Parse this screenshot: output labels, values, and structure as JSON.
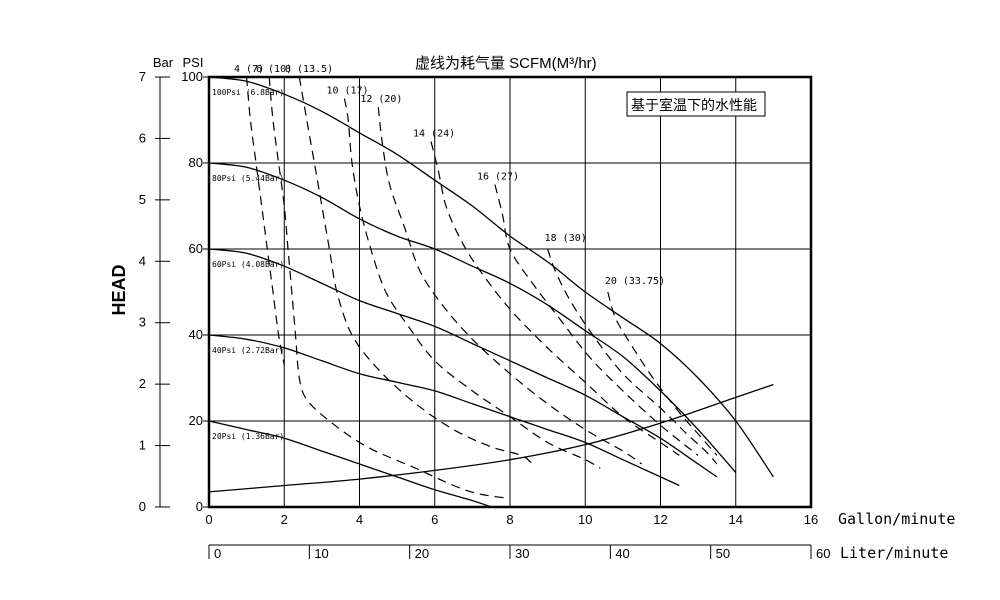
{
  "chart_data": {
    "type": "line",
    "title": "虚线为耗气量  SCFM(M³/hr)",
    "note": "基于室温下的水性能",
    "ylabel": "HEAD",
    "xlabel": "Gallon/minute",
    "x2label": "Liter/minute",
    "ylabel_bar": "Bar",
    "ylabel_psi": "PSI",
    "xlim": [
      0,
      16
    ],
    "ylim_psi": [
      0,
      100
    ],
    "ylim_bar": [
      0,
      7
    ],
    "x_ticks": [
      "0",
      "2",
      "4",
      "6",
      "8",
      "10",
      "12",
      "14",
      "16"
    ],
    "x2_ticks": [
      "0",
      "10",
      "20",
      "30",
      "40",
      "50",
      "60"
    ],
    "psi_ticks": [
      "0",
      "20",
      "40",
      "60",
      "80",
      "100"
    ],
    "bar_ticks": [
      "0",
      "1",
      "2",
      "3",
      "4",
      "5",
      "6",
      "7"
    ],
    "grid": true,
    "head_curves": [
      {
        "label": "100Psi (6.8Bar)",
        "points": [
          [
            0,
            100
          ],
          [
            1,
            99
          ],
          [
            2,
            96
          ],
          [
            3,
            92
          ],
          [
            4,
            87
          ],
          [
            5,
            82
          ],
          [
            6,
            76
          ],
          [
            7,
            70
          ],
          [
            8,
            63
          ],
          [
            9,
            57
          ],
          [
            10,
            50
          ],
          [
            11,
            44
          ],
          [
            12,
            38
          ],
          [
            13,
            30
          ],
          [
            14,
            20
          ],
          [
            15,
            7
          ]
        ]
      },
      {
        "label": "80Psi (5.44Bar)",
        "points": [
          [
            0,
            80
          ],
          [
            1,
            79
          ],
          [
            2,
            76
          ],
          [
            3,
            72
          ],
          [
            4,
            67
          ],
          [
            5,
            63
          ],
          [
            6,
            60
          ],
          [
            7,
            56
          ],
          [
            8,
            52
          ],
          [
            9,
            47
          ],
          [
            10,
            41
          ],
          [
            11,
            35
          ],
          [
            12,
            27
          ],
          [
            13,
            18
          ],
          [
            14,
            8
          ]
        ]
      },
      {
        "label": "60Psi (4.08Bar)",
        "points": [
          [
            0,
            60
          ],
          [
            1,
            59
          ],
          [
            2,
            56
          ],
          [
            3,
            52
          ],
          [
            4,
            48
          ],
          [
            5,
            45
          ],
          [
            6,
            42
          ],
          [
            7,
            38
          ],
          [
            8,
            34
          ],
          [
            9,
            30
          ],
          [
            10,
            26
          ],
          [
            11,
            21
          ],
          [
            12,
            16
          ],
          [
            13,
            10
          ],
          [
            13.5,
            7
          ]
        ]
      },
      {
        "label": "40Psi (2.72Bar)",
        "points": [
          [
            0,
            40
          ],
          [
            1,
            39
          ],
          [
            2,
            37
          ],
          [
            3,
            34
          ],
          [
            4,
            31
          ],
          [
            5,
            29
          ],
          [
            6,
            27
          ],
          [
            7,
            24
          ],
          [
            8,
            21
          ],
          [
            9,
            18
          ],
          [
            10,
            15
          ],
          [
            11,
            11
          ],
          [
            12,
            7
          ],
          [
            12.5,
            5
          ]
        ]
      },
      {
        "label": "20Psi (1.36Bar)",
        "points": [
          [
            0,
            20
          ],
          [
            1,
            18
          ],
          [
            2,
            16
          ],
          [
            3,
            13
          ],
          [
            4,
            10
          ],
          [
            5,
            7
          ],
          [
            6,
            4
          ],
          [
            7,
            1.5
          ],
          [
            7.5,
            0
          ]
        ]
      }
    ],
    "air_curves": [
      {
        "label": "4 (7)",
        "points": [
          [
            1.0,
            100
          ],
          [
            1.1,
            90
          ],
          [
            1.25,
            80
          ],
          [
            1.4,
            70
          ],
          [
            1.55,
            60
          ],
          [
            1.7,
            50
          ],
          [
            1.85,
            40
          ],
          [
            2.0,
            33
          ]
        ]
      },
      {
        "label": "6 (10)",
        "points": [
          [
            1.6,
            100
          ],
          [
            1.7,
            90
          ],
          [
            1.85,
            80
          ],
          [
            2.0,
            70
          ],
          [
            2.1,
            60
          ],
          [
            2.2,
            50
          ],
          [
            2.3,
            40
          ],
          [
            2.4,
            30
          ],
          [
            2.6,
            25
          ],
          [
            3.2,
            20
          ],
          [
            4.2,
            14
          ],
          [
            5.5,
            9
          ],
          [
            6.5,
            5
          ],
          [
            7.2,
            3
          ],
          [
            8.0,
            2
          ]
        ]
      },
      {
        "label": "8 (13.5)",
        "points": [
          [
            2.4,
            100
          ],
          [
            2.6,
            90
          ],
          [
            2.8,
            80
          ],
          [
            3.0,
            70
          ],
          [
            3.2,
            60
          ],
          [
            3.4,
            50
          ],
          [
            3.8,
            40
          ],
          [
            4.5,
            32
          ],
          [
            5.5,
            24
          ],
          [
            6.5,
            18
          ],
          [
            7.5,
            14
          ],
          [
            8.3,
            12
          ],
          [
            8.6,
            10
          ]
        ]
      },
      {
        "label": "10 (17)",
        "points": [
          [
            3.6,
            95
          ],
          [
            3.7,
            90
          ],
          [
            3.8,
            80
          ],
          [
            4.0,
            70
          ],
          [
            4.3,
            60
          ],
          [
            4.7,
            50
          ],
          [
            5.3,
            42
          ],
          [
            6.0,
            34
          ],
          [
            7.0,
            27
          ],
          [
            8.0,
            21
          ],
          [
            9.0,
            15
          ],
          [
            10.0,
            11
          ],
          [
            10.4,
            9
          ]
        ]
      },
      {
        "label": "12 (20)",
        "points": [
          [
            4.5,
            93
          ],
          [
            4.6,
            85
          ],
          [
            4.8,
            75
          ],
          [
            5.2,
            65
          ],
          [
            5.6,
            55
          ],
          [
            6.2,
            47
          ],
          [
            7.0,
            39
          ],
          [
            8.0,
            31
          ],
          [
            9.0,
            24
          ],
          [
            10.0,
            18
          ],
          [
            11.0,
            13
          ],
          [
            11.5,
            10
          ]
        ]
      },
      {
        "label": "14 (24)",
        "points": [
          [
            5.9,
            85
          ],
          [
            6.1,
            78
          ],
          [
            6.3,
            70
          ],
          [
            6.7,
            62
          ],
          [
            7.2,
            55
          ],
          [
            8.0,
            46
          ],
          [
            9.0,
            37
          ],
          [
            10.0,
            29
          ],
          [
            11.0,
            21
          ],
          [
            12.0,
            15
          ],
          [
            12.5,
            12
          ]
        ]
      },
      {
        "label": "16 (27)",
        "points": [
          [
            7.6,
            75
          ],
          [
            7.8,
            68
          ],
          [
            8.0,
            60
          ],
          [
            8.6,
            52
          ],
          [
            9.3,
            44
          ],
          [
            10.1,
            35
          ],
          [
            11.0,
            27
          ],
          [
            12.0,
            19
          ],
          [
            13.0,
            12
          ]
        ]
      },
      {
        "label": "18 (30)",
        "points": [
          [
            9.0,
            60
          ],
          [
            9.2,
            55
          ],
          [
            9.6,
            48
          ],
          [
            10.2,
            40
          ],
          [
            11.0,
            31
          ],
          [
            12.0,
            23
          ],
          [
            12.7,
            17
          ],
          [
            13.2,
            13
          ],
          [
            13.5,
            10
          ]
        ]
      },
      {
        "label": "20 (33.75)",
        "points": [
          [
            10.6,
            50
          ],
          [
            10.8,
            44
          ],
          [
            11.2,
            38
          ],
          [
            11.8,
            30
          ],
          [
            12.5,
            22
          ],
          [
            13.0,
            17
          ],
          [
            13.5,
            12
          ]
        ]
      }
    ],
    "system_curve": {
      "points": [
        [
          0,
          3.5
        ],
        [
          2,
          5
        ],
        [
          4,
          6.5
        ],
        [
          6,
          8.5
        ],
        [
          8,
          11
        ],
        [
          10,
          14.5
        ],
        [
          12,
          19.5
        ],
        [
          14,
          25.5
        ],
        [
          15,
          28.5
        ]
      ]
    }
  }
}
